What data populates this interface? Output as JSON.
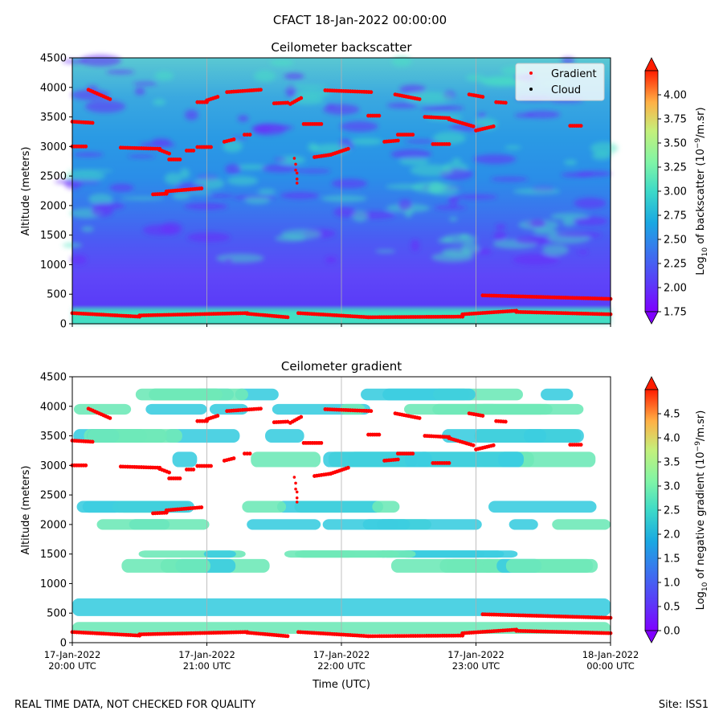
{
  "suptitle": "CFACT 18-Jan-2022 00:00:00",
  "footer": {
    "left": "REAL TIME DATA, NOT CHECKED FOR QUALITY",
    "right": "Site: ISS1"
  },
  "colors": {
    "gradient_marker": "#ff0000",
    "cloud_marker": "#000000",
    "grid": "#b0b0b0"
  },
  "chart_data": [
    {
      "type": "heatmap",
      "title": "Ceilometer backscatter",
      "ylabel": "Altitude (meters)",
      "xlabel": "",
      "ylim": [
        0,
        4500
      ],
      "yticks": [
        0,
        500,
        1000,
        1500,
        2000,
        2500,
        3000,
        3500,
        4000,
        4500
      ],
      "xticks": [
        {
          "value": 20,
          "label": [
            "17-Jan-2022",
            "20:00 UTC"
          ]
        },
        {
          "value": 21,
          "label": [
            "17-Jan-2022",
            "21:00 UTC"
          ]
        },
        {
          "value": 22,
          "label": [
            "17-Jan-2022",
            "22:00 UTC"
          ]
        },
        {
          "value": 23,
          "label": [
            "17-Jan-2022",
            "23:00 UTC"
          ]
        },
        {
          "value": 24,
          "label": [
            "18-Jan-2022",
            "00:00 UTC"
          ]
        }
      ],
      "xlim": [
        20,
        24
      ],
      "grid": "x",
      "colorbar": {
        "label_parts": [
          "Log",
          "10",
          " of backscatter (10",
          "−9",
          "/m.sr)"
        ],
        "range": [
          1.75,
          4.25
        ],
        "ticks": [
          "1.75",
          "2.00",
          "2.25",
          "2.50",
          "2.75",
          "3.00",
          "3.25",
          "3.50",
          "3.75",
          "4.00"
        ],
        "tick_values": [
          1.75,
          2.0,
          2.25,
          2.5,
          2.75,
          3.0,
          3.25,
          3.5,
          3.75,
          4.0
        ],
        "colormap": "rainbow"
      },
      "legend": {
        "location": "top-right",
        "entries": [
          {
            "label": "Gradient",
            "color": "#ff0000"
          },
          {
            "label": "Cloud",
            "color": "#000000"
          }
        ]
      },
      "show_tick_labels_x": false
    },
    {
      "type": "heatmap",
      "title": "Ceilometer gradient",
      "ylabel": "Altitude (meters)",
      "xlabel": "Time (UTC)",
      "ylim": [
        0,
        4500
      ],
      "yticks": [
        0,
        500,
        1000,
        1500,
        2000,
        2500,
        3000,
        3500,
        4000,
        4500
      ],
      "xticks": [
        {
          "value": 20,
          "label": [
            "17-Jan-2022",
            "20:00 UTC"
          ]
        },
        {
          "value": 21,
          "label": [
            "17-Jan-2022",
            "21:00 UTC"
          ]
        },
        {
          "value": 22,
          "label": [
            "17-Jan-2022",
            "22:00 UTC"
          ]
        },
        {
          "value": 23,
          "label": [
            "17-Jan-2022",
            "23:00 UTC"
          ]
        },
        {
          "value": 24,
          "label": [
            "18-Jan-2022",
            "00:00 UTC"
          ]
        }
      ],
      "xlim": [
        20,
        24
      ],
      "grid": "x",
      "colorbar": {
        "label_parts": [
          "Log",
          "10",
          " of negative gradient (10",
          "−9",
          "/m.sr)"
        ],
        "range": [
          0.0,
          5.0
        ],
        "ticks": [
          "0.0",
          "0.5",
          "1.0",
          "1.5",
          "2.0",
          "2.5",
          "3.0",
          "3.5",
          "4.0",
          "4.5"
        ],
        "tick_values": [
          0.0,
          0.5,
          1.0,
          1.5,
          2.0,
          2.5,
          3.0,
          3.5,
          4.0,
          4.5
        ],
        "colormap": "rainbow"
      },
      "show_tick_labels_x": true
    }
  ],
  "gradient_points": [
    {
      "t0": 20.0,
      "t1": 20.1,
      "y0": 3000,
      "y1": 3000
    },
    {
      "t0": 20.0,
      "t1": 20.15,
      "y0": 3420,
      "y1": 3400
    },
    {
      "t0": 20.12,
      "t1": 20.28,
      "y0": 3960,
      "y1": 3800
    },
    {
      "t0": 20.36,
      "t1": 20.65,
      "y0": 2980,
      "y1": 2960
    },
    {
      "t0": 20.65,
      "t1": 20.72,
      "y0": 2940,
      "y1": 2880
    },
    {
      "t0": 20.72,
      "t1": 20.8,
      "y0": 2780,
      "y1": 2780
    },
    {
      "t0": 20.85,
      "t1": 20.9,
      "y0": 2930,
      "y1": 2930
    },
    {
      "t0": 20.6,
      "t1": 20.7,
      "y0": 2190,
      "y1": 2200
    },
    {
      "t0": 20.7,
      "t1": 20.96,
      "y0": 2240,
      "y1": 2290
    },
    {
      "t0": 20.93,
      "t1": 21.03,
      "y0": 2990,
      "y1": 2990
    },
    {
      "t0": 20.93,
      "t1": 21.0,
      "y0": 3750,
      "y1": 3750
    },
    {
      "t0": 21.0,
      "t1": 21.08,
      "y0": 3780,
      "y1": 3840
    },
    {
      "t0": 21.13,
      "t1": 21.2,
      "y0": 3080,
      "y1": 3120
    },
    {
      "t0": 21.28,
      "t1": 21.32,
      "y0": 3200,
      "y1": 3200
    },
    {
      "t0": 21.15,
      "t1": 21.4,
      "y0": 3920,
      "y1": 3960
    },
    {
      "t0": 21.5,
      "t1": 21.6,
      "y0": 3730,
      "y1": 3740
    },
    {
      "t0": 21.62,
      "t1": 21.7,
      "y0": 3720,
      "y1": 3820
    },
    {
      "t0": 21.72,
      "t1": 21.85,
      "y0": 3380,
      "y1": 3380
    },
    {
      "t0": 21.8,
      "t1": 21.92,
      "y0": 2820,
      "y1": 2860
    },
    {
      "t0": 21.92,
      "t1": 22.05,
      "y0": 2860,
      "y1": 2960
    },
    {
      "t0": 21.88,
      "t1": 22.22,
      "y0": 3950,
      "y1": 3920
    },
    {
      "t0": 22.2,
      "t1": 22.28,
      "y0": 3520,
      "y1": 3520
    },
    {
      "t0": 22.32,
      "t1": 22.42,
      "y0": 3080,
      "y1": 3100
    },
    {
      "t0": 22.42,
      "t1": 22.53,
      "y0": 3200,
      "y1": 3200
    },
    {
      "t0": 22.4,
      "t1": 22.58,
      "y0": 3880,
      "y1": 3800
    },
    {
      "t0": 22.62,
      "t1": 22.8,
      "y0": 3500,
      "y1": 3480
    },
    {
      "t0": 22.8,
      "t1": 22.98,
      "y0": 3460,
      "y1": 3340
    },
    {
      "t0": 22.68,
      "t1": 22.8,
      "y0": 3040,
      "y1": 3040
    },
    {
      "t0": 22.95,
      "t1": 23.05,
      "y0": 3880,
      "y1": 3840
    },
    {
      "t0": 23.0,
      "t1": 23.13,
      "y0": 3270,
      "y1": 3340
    },
    {
      "t0": 23.15,
      "t1": 23.22,
      "y0": 3750,
      "y1": 3740
    },
    {
      "t0": 23.7,
      "t1": 23.78,
      "y0": 3350,
      "y1": 3350
    },
    {
      "t0": 23.05,
      "t1": 24.0,
      "y0": 480,
      "y1": 420
    },
    {
      "t0": 20.0,
      "t1": 20.5,
      "y0": 180,
      "y1": 120
    },
    {
      "t0": 20.5,
      "t1": 21.3,
      "y0": 140,
      "y1": 180
    },
    {
      "t0": 21.3,
      "t1": 21.6,
      "y0": 170,
      "y1": 110
    },
    {
      "t0": 21.68,
      "t1": 22.2,
      "y0": 180,
      "y1": 110
    },
    {
      "t0": 22.2,
      "t1": 22.9,
      "y0": 110,
      "y1": 120
    },
    {
      "t0": 22.9,
      "t1": 23.3,
      "y0": 160,
      "y1": 220
    },
    {
      "t0": 23.3,
      "t1": 24.0,
      "y0": 200,
      "y1": 160
    }
  ],
  "gradient_scatter": [
    {
      "t": 21.65,
      "y": 2800
    },
    {
      "t": 21.66,
      "y": 2700
    },
    {
      "t": 21.66,
      "y": 2600
    },
    {
      "t": 21.67,
      "y": 2550
    },
    {
      "t": 21.67,
      "y": 2450
    },
    {
      "t": 21.67,
      "y": 2380
    }
  ]
}
